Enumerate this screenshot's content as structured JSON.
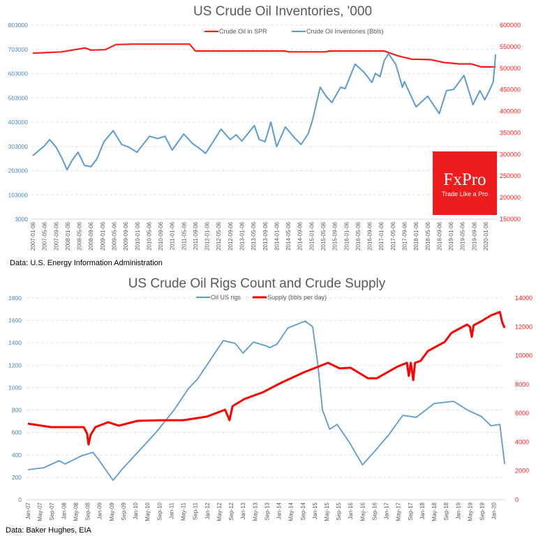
{
  "chart_data": [
    {
      "type": "line",
      "title": "US Crude Oil Inventories, '000",
      "x_unit": "months since 2007-01",
      "xlim": [
        0,
        160
      ],
      "xticks": [
        "2007-01-06",
        "2007-05-06",
        "2007-09-06",
        "2008-01-06",
        "2008-05-06",
        "2008-09-06",
        "2009-01-06",
        "2009-05-06",
        "2009-09-06",
        "2010-01-06",
        "2010-05-06",
        "2010-09-06",
        "2011-01-06",
        "2011-05-06",
        "2011-09-06",
        "2012-01-06",
        "2012-05-06",
        "2012-09-06",
        "2013-01-06",
        "2013-05-06",
        "2013-09-06",
        "2014-01-06",
        "2014-05-06",
        "2014-09-06",
        "2015-01-06",
        "2015-05-06",
        "2015-09-06",
        "2016-01-06",
        "2016-05-06",
        "2016-09-06",
        "2017-01-06",
        "2017-05-06",
        "2017-09-06",
        "2018-01-06",
        "2018-05-06",
        "2018-09-06",
        "2019-01-06",
        "2019-05-06",
        "2019-09-06",
        "2020-01-06"
      ],
      "y_left": {
        "ylim": [
          3000,
          803000
        ],
        "ticks": [
          "3000",
          "103000",
          "203000",
          "303000",
          "403000",
          "503000",
          "603000",
          "703000",
          "803000"
        ]
      },
      "y_right": {
        "ylim": [
          150000,
          600000
        ],
        "ticks": [
          "150000",
          "200000",
          "250000",
          "300000",
          "350000",
          "400000",
          "450000",
          "500000",
          "550000",
          "600000"
        ]
      },
      "grid": true,
      "legend_position": "top-center",
      "series": [
        {
          "name": "Crude Oil in SPR",
          "axis": "right",
          "color": "#ff1a1a",
          "points": [
            [
              0,
              535000
            ],
            [
              10,
              538000
            ],
            [
              18,
              547000
            ],
            [
              20,
              542000
            ],
            [
              25,
              543000
            ],
            [
              28.6,
              555000
            ],
            [
              35,
              556000
            ],
            [
              54,
              556000
            ],
            [
              56,
              540000
            ],
            [
              87,
              540000
            ],
            [
              88,
              538000
            ],
            [
              101,
              538000
            ],
            [
              102,
              540000
            ],
            [
              121,
              540000
            ],
            [
              125.7,
              529000
            ],
            [
              130.5,
              521000
            ],
            [
              137,
              520000
            ],
            [
              141.8,
              513000
            ],
            [
              147,
              510000
            ],
            [
              151,
              510000
            ],
            [
              154.5,
              503000
            ],
            [
              159.5,
              503000
            ]
          ]
        },
        {
          "name": "Crude Oil Inventories (Bbls)",
          "axis": "left",
          "color": "#5b9bd5",
          "points": [
            [
              0,
              265000
            ],
            [
              2,
              285000
            ],
            [
              4,
              305000
            ],
            [
              5.8,
              331000
            ],
            [
              8,
              300000
            ],
            [
              10,
              255000
            ],
            [
              11.8,
              207000
            ],
            [
              13.5,
              245000
            ],
            [
              15.6,
              279000
            ],
            [
              17.8,
              225000
            ],
            [
              20,
              219000
            ],
            [
              22,
              250000
            ],
            [
              24.5,
              322000
            ],
            [
              27.7,
              368000
            ],
            [
              30.6,
              311000
            ],
            [
              33,
              300000
            ],
            [
              35.9,
              279000
            ],
            [
              40.2,
              345000
            ],
            [
              43,
              335000
            ],
            [
              45.5,
              345000
            ],
            [
              48,
              288000
            ],
            [
              52,
              354000
            ],
            [
              55,
              315000
            ],
            [
              57.5,
              294000
            ],
            [
              59.5,
              274000
            ],
            [
              62,
              320000
            ],
            [
              64.8,
              374000
            ],
            [
              68,
              331000
            ],
            [
              70,
              351000
            ],
            [
              72,
              325000
            ],
            [
              76.3,
              389000
            ],
            [
              78,
              331000
            ],
            [
              80,
              322000
            ],
            [
              82,
              403000
            ],
            [
              84,
              302000
            ],
            [
              87,
              383000
            ],
            [
              90,
              340000
            ],
            [
              92.4,
              311000
            ],
            [
              94.8,
              354000
            ],
            [
              96.3,
              409000
            ],
            [
              99,
              547000
            ],
            [
              101,
              510000
            ],
            [
              103,
              484000
            ],
            [
              106,
              547000
            ],
            [
              107.6,
              541000
            ],
            [
              111,
              642000
            ],
            [
              114,
              610000
            ],
            [
              116.8,
              567000
            ],
            [
              118,
              604000
            ],
            [
              119.6,
              590000
            ],
            [
              121,
              656000
            ],
            [
              122.5,
              685000
            ],
            [
              125,
              642000
            ],
            [
              127.3,
              547000
            ],
            [
              128,
              570000
            ],
            [
              132,
              466000
            ],
            [
              136,
              510000
            ],
            [
              140,
              438000
            ],
            [
              142.5,
              533000
            ],
            [
              145,
              538000
            ],
            [
              148.5,
              596000
            ],
            [
              151.6,
              475000
            ],
            [
              154,
              533000
            ],
            [
              155.7,
              495000
            ],
            [
              157.6,
              541000
            ],
            [
              158.6,
              570000
            ],
            [
              159.4,
              682000
            ]
          ]
        }
      ]
    },
    {
      "type": "line",
      "title": "US Crude Oil Rigs Count and Crude Supply",
      "x_unit": "months since 2007-01",
      "xlim": [
        0,
        160
      ],
      "xticks": [
        "Jan-07",
        "May-07",
        "Sep-07",
        "Jan-08",
        "May-08",
        "Sep-08",
        "Jan-09",
        "May-09",
        "Sep-09",
        "Jan-10",
        "May-10",
        "Sep-10",
        "Jan-11",
        "May-11",
        "Sep-11",
        "Jan-12",
        "May-12",
        "Sep-12",
        "Jan-13",
        "May-13",
        "Sep-13",
        "Jan-14",
        "May-14",
        "Sep-14",
        "Jan-15",
        "May-15",
        "Sep-15",
        "Jan-16",
        "May-16",
        "Sep-16",
        "Jan-17",
        "May-17",
        "Sep-17",
        "Jan-18",
        "May-18",
        "Sep-18",
        "Jan-19",
        "May-19",
        "Sep-19",
        "Jan-20"
      ],
      "y_left": {
        "ylim": [
          0,
          1800
        ],
        "ticks": [
          "0",
          "200",
          "400",
          "600",
          "800",
          "1000",
          "1200",
          "1400",
          "1600",
          "1800"
        ]
      },
      "y_right": {
        "ylim": [
          0,
          14000
        ],
        "ticks": [
          "0",
          "2000",
          "4000",
          "6000",
          "8000",
          "10000",
          "12000",
          "14000"
        ]
      },
      "grid": true,
      "legend_position": "top-center",
      "series": [
        {
          "name": "Oil US rigs",
          "axis": "left",
          "color": "#5b9bd5",
          "points": [
            [
              0,
              268
            ],
            [
              5.4,
              286
            ],
            [
              10.5,
              349
            ],
            [
              12.4,
              318
            ],
            [
              18,
              392
            ],
            [
              21.7,
              423
            ],
            [
              23.4,
              367
            ],
            [
              28.5,
              174
            ],
            [
              32,
              286
            ],
            [
              37.4,
              442
            ],
            [
              42.8,
              598
            ],
            [
              49,
              803
            ],
            [
              53.7,
              990
            ],
            [
              56.8,
              1077
            ],
            [
              62.4,
              1301
            ],
            [
              65.4,
              1420
            ],
            [
              69.4,
              1395
            ],
            [
              72,
              1308
            ],
            [
              75.5,
              1407
            ],
            [
              79.4,
              1376
            ],
            [
              81,
              1357
            ],
            [
              83.4,
              1388
            ],
            [
              87,
              1532
            ],
            [
              92.8,
              1594
            ],
            [
              95.3,
              1544
            ],
            [
              97,
              1220
            ],
            [
              98.6,
              803
            ],
            [
              101,
              629
            ],
            [
              103.5,
              672
            ],
            [
              107.5,
              517
            ],
            [
              112,
              311
            ],
            [
              116,
              430
            ],
            [
              120.8,
              579
            ],
            [
              125.5,
              753
            ],
            [
              130,
              735
            ],
            [
              136,
              859
            ],
            [
              142.5,
              878
            ],
            [
              147,
              803
            ],
            [
              151.9,
              741
            ],
            [
              155,
              660
            ],
            [
              158,
              672
            ],
            [
              159.6,
              318
            ]
          ]
        },
        {
          "name": "Supply (bbls per day)",
          "axis": "right",
          "color": "#ff0000",
          "points": [
            [
              0,
              5280
            ],
            [
              7.7,
              5040
            ],
            [
              18.7,
              5040
            ],
            [
              19.8,
              4600
            ],
            [
              20.3,
              3830
            ],
            [
              21,
              4500
            ],
            [
              22.6,
              5040
            ],
            [
              26.9,
              5380
            ],
            [
              30.4,
              5140
            ],
            [
              36.7,
              5475
            ],
            [
              44.4,
              5520
            ],
            [
              52,
              5520
            ],
            [
              60,
              5770
            ],
            [
              66,
              6250
            ],
            [
              67.5,
              5520
            ],
            [
              68.5,
              6490
            ],
            [
              72.4,
              6980
            ],
            [
              78.7,
              7460
            ],
            [
              85,
              8140
            ],
            [
              92.7,
              8870
            ],
            [
              100.5,
              9500
            ],
            [
              104.4,
              9110
            ],
            [
              108,
              9160
            ],
            [
              113.8,
              8430
            ],
            [
              116.8,
              8430
            ],
            [
              123.8,
              9250
            ],
            [
              126.9,
              9500
            ],
            [
              127.5,
              8600
            ],
            [
              128.2,
              9500
            ],
            [
              129,
              8300
            ],
            [
              129.6,
              9500
            ],
            [
              131.5,
              9640
            ],
            [
              133.9,
              10320
            ],
            [
              139.5,
              10950
            ],
            [
              141.8,
              11580
            ],
            [
              147,
              12160
            ],
            [
              148,
              12000
            ],
            [
              148.6,
              11300
            ],
            [
              149.2,
              12100
            ],
            [
              151.9,
              12400
            ],
            [
              155,
              12790
            ],
            [
              158,
              13030
            ],
            [
              158.8,
              12300
            ],
            [
              159.6,
              11920
            ]
          ]
        }
      ]
    }
  ],
  "sources": {
    "top": "Data: U.S. Energy Information Administration",
    "bottom": "Data: Baker Hughes, EIA"
  },
  "logo": {
    "brand": "FxPro",
    "tagline": "Trade Like a Pro",
    "color": "#ee1c1c"
  }
}
